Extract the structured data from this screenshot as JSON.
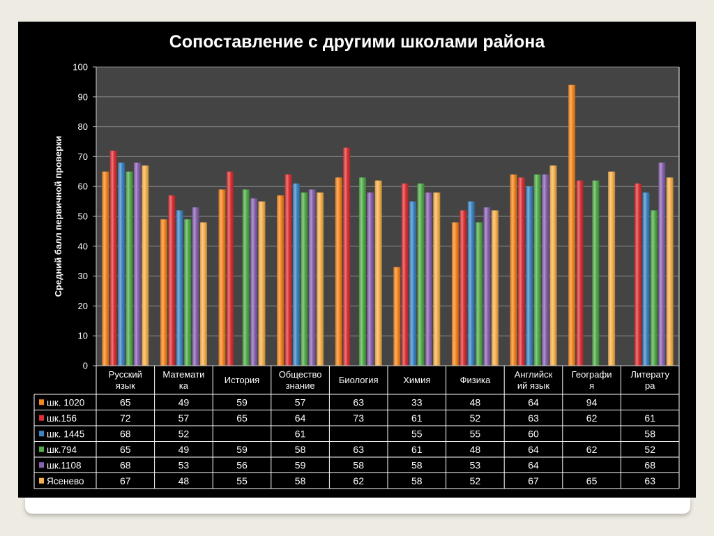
{
  "chart_data": {
    "type": "bar",
    "title": "Сопоставление с другими школами района",
    "ylabel": "Средний балл первичной  проверки",
    "xlabel": "",
    "ylim": [
      0,
      100
    ],
    "yticks": [
      "0",
      "10",
      "20",
      "30",
      "40",
      "50",
      "60",
      "70",
      "80",
      "90",
      "100"
    ],
    "grid": true,
    "legend": "data-table-left",
    "categories": [
      [
        "Русский",
        "язык"
      ],
      [
        "Математи",
        "ка"
      ],
      [
        "История"
      ],
      [
        "Общество",
        "знание"
      ],
      [
        "Биология"
      ],
      [
        "Химия"
      ],
      [
        "Физика"
      ],
      [
        "Английск",
        "ий язык"
      ],
      [
        "Географи",
        "я"
      ],
      [
        "Литерату",
        "ра"
      ]
    ],
    "series": [
      {
        "name": "шк. 1020",
        "color": "#f7871f",
        "values": [
          65,
          49,
          59,
          57,
          63,
          33,
          48,
          64,
          94,
          null
        ]
      },
      {
        "name": "шк.156",
        "color": "#dd3236",
        "values": [
          72,
          57,
          65,
          64,
          73,
          61,
          52,
          63,
          62,
          61
        ]
      },
      {
        "name": "шк. 1445",
        "color": "#3d86c6",
        "values": [
          68,
          52,
          null,
          61,
          null,
          55,
          55,
          60,
          null,
          58
        ]
      },
      {
        "name": "шк.794",
        "color": "#52ad4a",
        "values": [
          65,
          49,
          59,
          58,
          63,
          61,
          48,
          64,
          62,
          52
        ]
      },
      {
        "name": "шк.1108",
        "color": "#8963b1",
        "values": [
          68,
          53,
          56,
          59,
          58,
          58,
          53,
          64,
          null,
          68
        ]
      },
      {
        "name": "Ясенево",
        "color": "#f8b24d",
        "values": [
          67,
          48,
          55,
          58,
          62,
          58,
          52,
          67,
          65,
          63
        ]
      }
    ]
  }
}
